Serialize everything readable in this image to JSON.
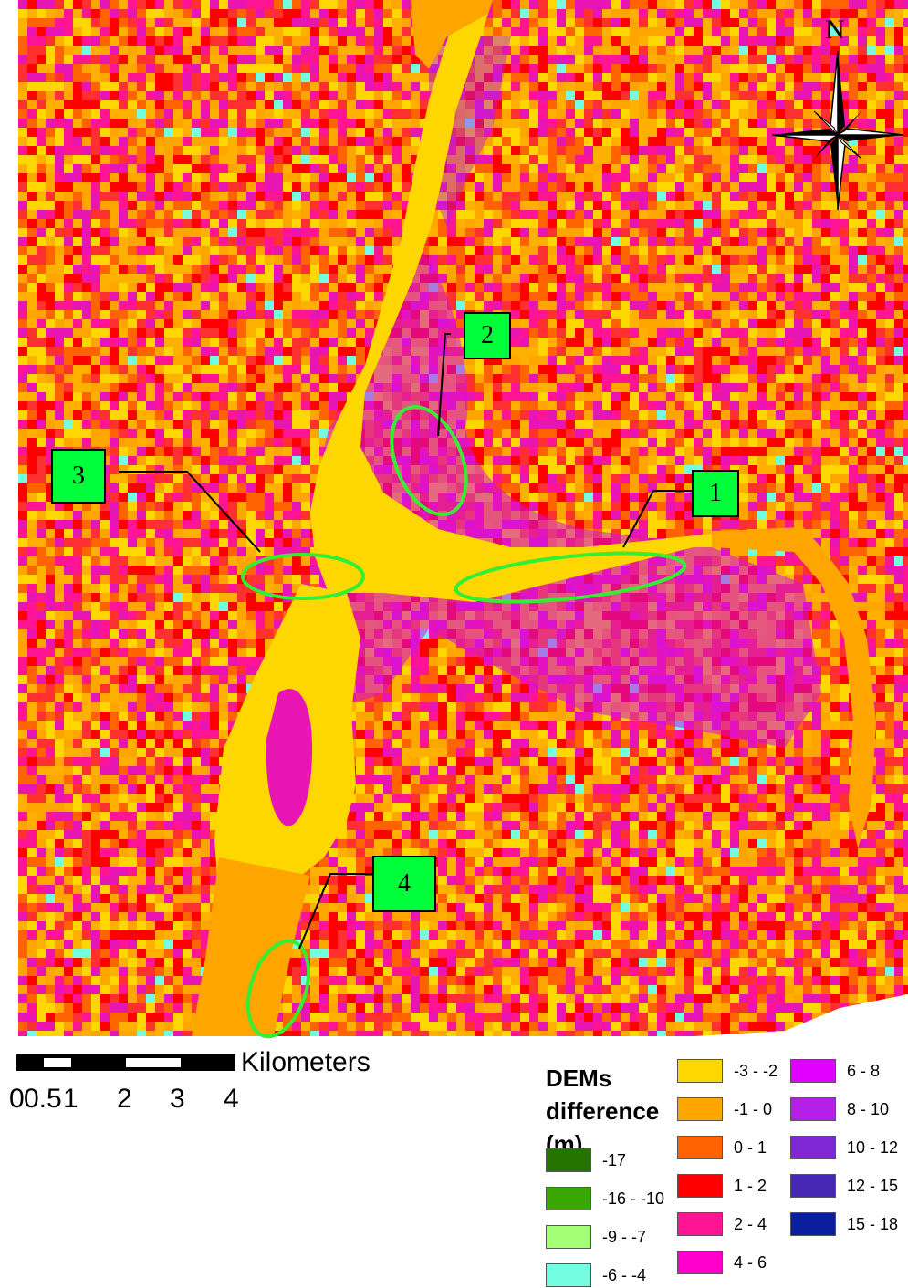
{
  "map": {
    "callouts": [
      {
        "id": "1",
        "label": "1"
      },
      {
        "id": "2",
        "label": "2"
      },
      {
        "id": "3",
        "label": "3"
      },
      {
        "id": "4",
        "label": "4"
      }
    ],
    "north_arrow_label": "N"
  },
  "scale_bar": {
    "unit": "Kilometers",
    "ticks": [
      "0",
      "0.5",
      "1",
      "2",
      "3",
      "4"
    ]
  },
  "legend": {
    "title": "DEMs difference (m)",
    "items": [
      {
        "label": "-17",
        "color": "#267300"
      },
      {
        "label": "-16 - -10",
        "color": "#38a800"
      },
      {
        "label": "-9 - -7",
        "color": "#a3ff73"
      },
      {
        "label": "-6 - -4",
        "color": "#73ffdf"
      },
      {
        "label": "-3 - -2",
        "color": "#ffd700"
      },
      {
        "label": "-1 - 0",
        "color": "#ffa500"
      },
      {
        "label": "0 - 1",
        "color": "#ff6400"
      },
      {
        "label": "1 - 2",
        "color": "#ff0000"
      },
      {
        "label": "2 - 4",
        "color": "#ff1493"
      },
      {
        "label": "4 - 6",
        "color": "#ff00cc"
      },
      {
        "label": "6 - 8",
        "color": "#e100ff"
      },
      {
        "label": "8 - 10",
        "color": "#b41ee6"
      },
      {
        "label": "10 - 12",
        "color": "#7d28d2"
      },
      {
        "label": "12 - 15",
        "color": "#4628b4"
      },
      {
        "label": "15 - 18",
        "color": "#0a1ea0"
      }
    ]
  }
}
